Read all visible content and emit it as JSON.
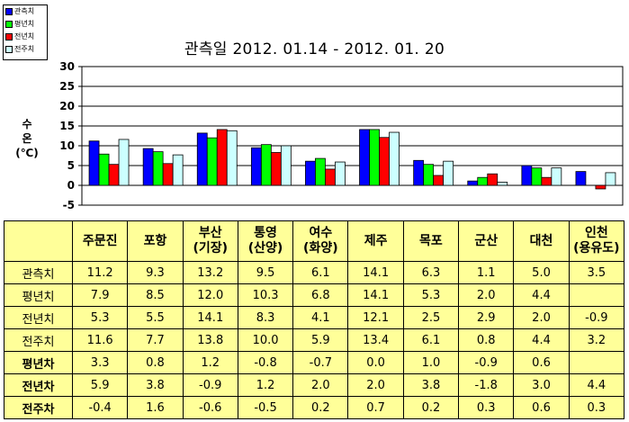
{
  "chart_data": {
    "type": "bar",
    "title": "관측일 2012. 01.14  -  2012. 01. 20",
    "ylabel_lines": [
      "수",
      "온",
      "(℃)"
    ],
    "ylim": [
      -5,
      30
    ],
    "yticks": [
      "30",
      "25",
      "20",
      "15",
      "10",
      "5",
      "0",
      "-5"
    ],
    "grid": true,
    "legend_position": "top-left",
    "categories": [
      "주문진",
      "포항",
      "부산 (기장)",
      "통영 (산양)",
      "여수 (화양)",
      "제주",
      "목포",
      "군산",
      "대천",
      "인천 (용유도)"
    ],
    "series": [
      {
        "name": "관측치",
        "color": "#0000ff",
        "values": [
          11.2,
          9.3,
          13.2,
          9.5,
          6.1,
          14.1,
          6.3,
          1.1,
          5.0,
          3.5
        ]
      },
      {
        "name": "평년치",
        "color": "#00ff00",
        "values": [
          7.9,
          8.5,
          12.0,
          10.3,
          6.8,
          14.1,
          5.3,
          2.0,
          4.4,
          null
        ]
      },
      {
        "name": "전년치",
        "color": "#ff0000",
        "values": [
          5.3,
          5.5,
          14.1,
          8.3,
          4.1,
          12.1,
          2.5,
          2.9,
          2.0,
          -0.9
        ]
      },
      {
        "name": "전주치",
        "color": "#ccffff",
        "values": [
          11.6,
          7.7,
          13.8,
          10.0,
          5.9,
          13.4,
          6.1,
          0.8,
          4.4,
          3.2
        ]
      }
    ]
  },
  "table": {
    "headers": [
      [
        "주문진"
      ],
      [
        "포항"
      ],
      [
        "부산",
        "(기장)"
      ],
      [
        "통영",
        "(산양)"
      ],
      [
        "여수",
        "(화양)"
      ],
      [
        "제주"
      ],
      [
        "목포"
      ],
      [
        "군산"
      ],
      [
        "대천"
      ],
      [
        "인천",
        "(용유도)"
      ]
    ],
    "rows": [
      {
        "label": "관측치",
        "bold": false,
        "values": [
          "11.2",
          "9.3",
          "13.2",
          "9.5",
          "6.1",
          "14.1",
          "6.3",
          "1.1",
          "5.0",
          "3.5"
        ]
      },
      {
        "label": "평년치",
        "bold": false,
        "values": [
          "7.9",
          "8.5",
          "12.0",
          "10.3",
          "6.8",
          "14.1",
          "5.3",
          "2.0",
          "4.4",
          ""
        ]
      },
      {
        "label": "전년치",
        "bold": false,
        "values": [
          "5.3",
          "5.5",
          "14.1",
          "8.3",
          "4.1",
          "12.1",
          "2.5",
          "2.9",
          "2.0",
          "-0.9"
        ]
      },
      {
        "label": "전주치",
        "bold": false,
        "values": [
          "11.6",
          "7.7",
          "13.8",
          "10.0",
          "5.9",
          "13.4",
          "6.1",
          "0.8",
          "4.4",
          "3.2"
        ]
      },
      {
        "label": "평년차",
        "bold": true,
        "values": [
          "3.3",
          "0.8",
          "1.2",
          "-0.8",
          "-0.7",
          "0.0",
          "1.0",
          "-0.9",
          "0.6",
          ""
        ]
      },
      {
        "label": "전년차",
        "bold": true,
        "values": [
          "5.9",
          "3.8",
          "-0.9",
          "1.2",
          "2.0",
          "2.0",
          "3.8",
          "-1.8",
          "3.0",
          "4.4"
        ]
      },
      {
        "label": "전주차",
        "bold": true,
        "values": [
          "-0.4",
          "1.6",
          "-0.6",
          "-0.5",
          "0.2",
          "0.7",
          "0.2",
          "0.3",
          "0.6",
          "0.3"
        ]
      }
    ]
  }
}
